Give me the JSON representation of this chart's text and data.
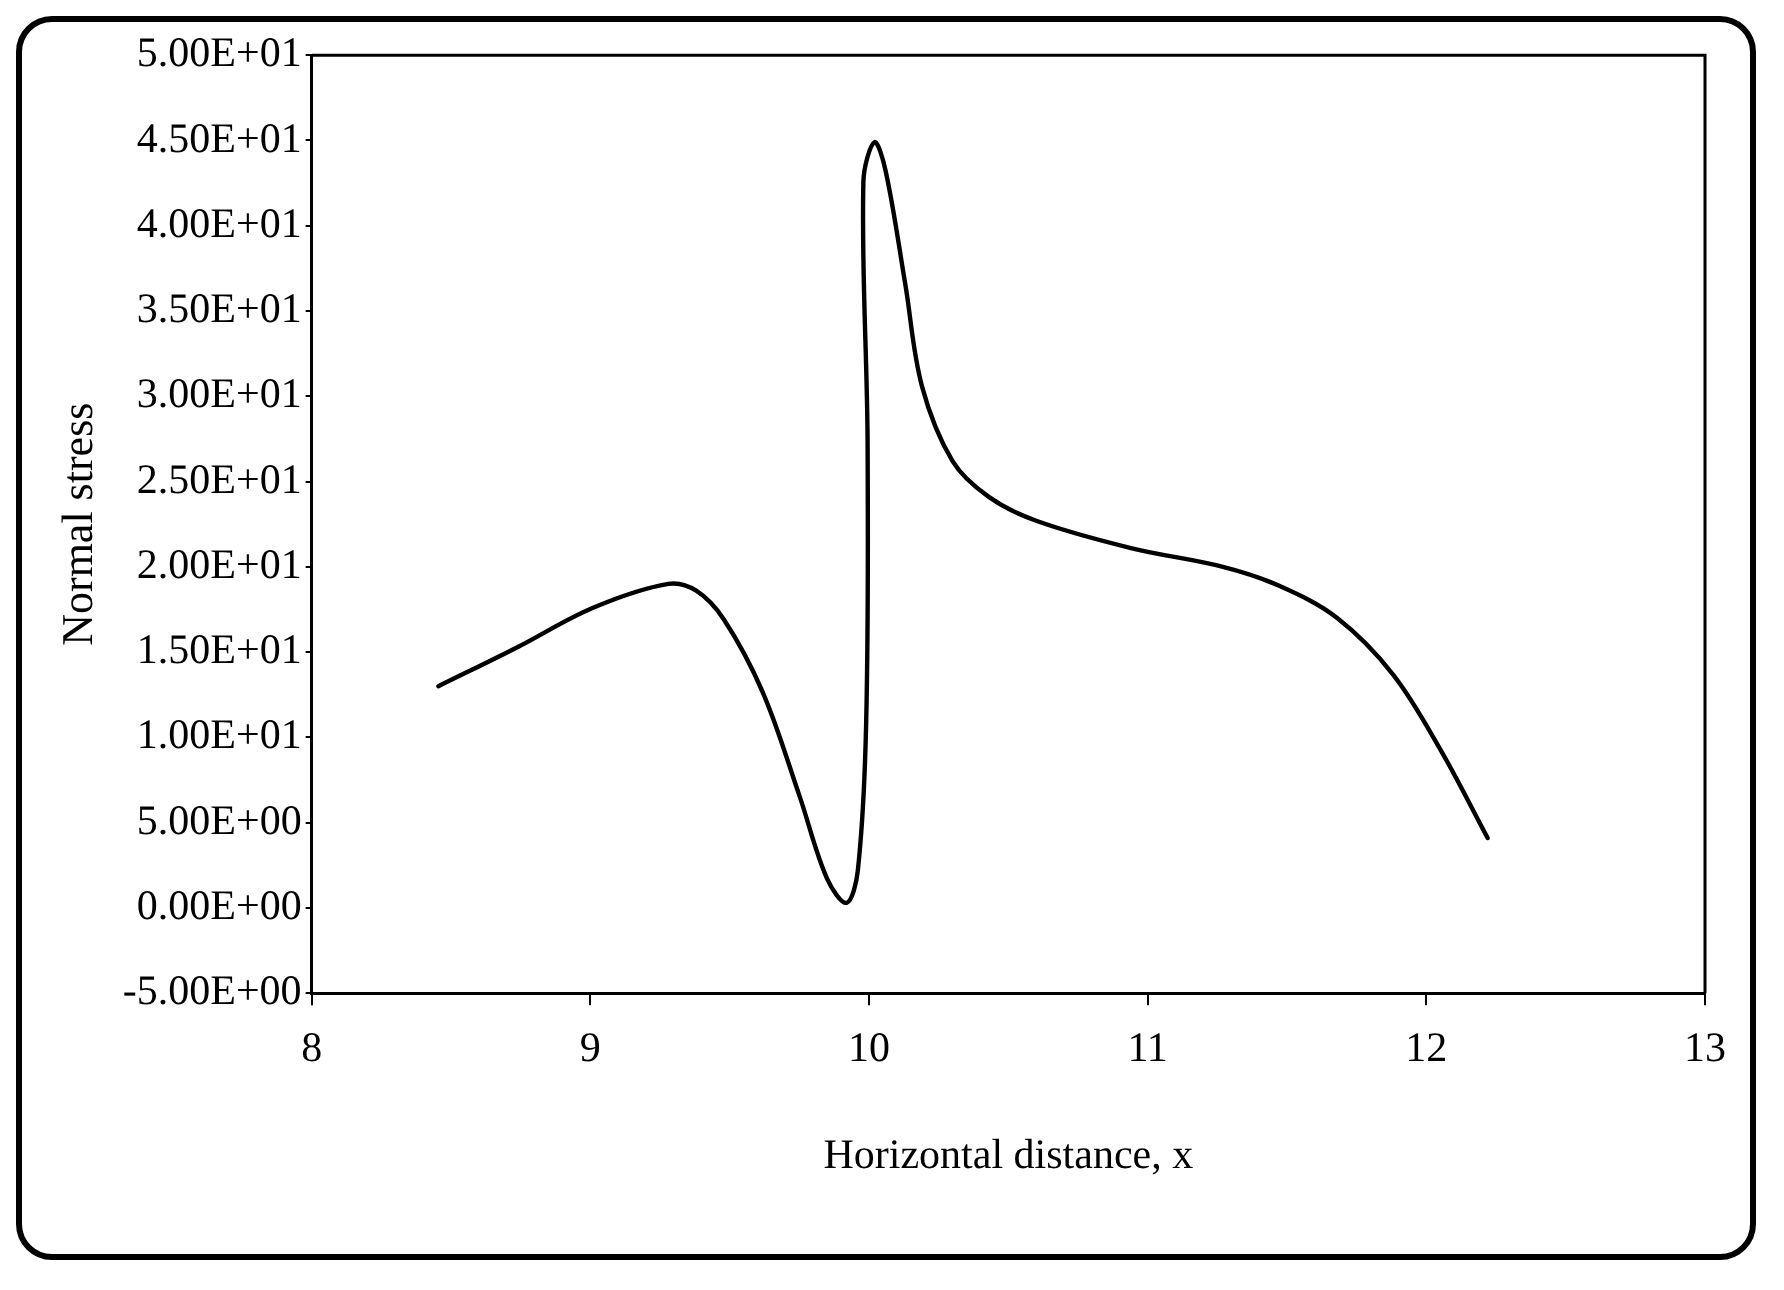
{
  "chart_data": {
    "type": "line",
    "xlabel": "Horizontal distance, x",
    "ylabel": "Normal stress",
    "x": [
      8.455,
      8.74,
      9.01,
      9.28,
      9.38,
      9.48,
      9.62,
      9.75,
      9.85,
      9.92,
      9.96,
      9.99,
      9.995,
      9.98,
      10.02,
      10.06,
      10.13,
      10.19,
      10.3,
      10.43,
      10.6,
      10.94,
      11.27,
      11.47,
      11.68,
      11.88,
      12.05,
      12.22
    ],
    "series": [
      {
        "color": "#000000",
        "values": [
          13.0,
          15.3,
          17.6,
          19.0,
          18.6,
          16.9,
          12.6,
          6.6,
          1.7,
          0.3,
          2.2,
          10.9,
          27.3,
          42.6,
          44.9,
          43.2,
          36.6,
          30.6,
          26.2,
          24.1,
          22.7,
          21.1,
          20.0,
          18.9,
          17.0,
          13.7,
          9.3,
          4.1
        ]
      }
    ],
    "xlim": [
      8,
      13
    ],
    "xticks": [
      8,
      9,
      10,
      11,
      12,
      13
    ],
    "ylim": [
      -5,
      50
    ],
    "yticks": [
      {
        "value": -5,
        "label": "-5.00E+00"
      },
      {
        "value": 0,
        "label": "0.00E+00"
      },
      {
        "value": 5,
        "label": "5.00E+00"
      },
      {
        "value": 10,
        "label": "1.00E+01"
      },
      {
        "value": 15,
        "label": "1.50E+01"
      },
      {
        "value": 20,
        "label": "2.00E+01"
      },
      {
        "value": 25,
        "label": "2.50E+01"
      },
      {
        "value": 30,
        "label": "3.00E+01"
      },
      {
        "value": 35,
        "label": "3.50E+01"
      },
      {
        "value": 40,
        "label": "4.00E+01"
      },
      {
        "value": 45,
        "label": "4.50E+01"
      },
      {
        "value": 50,
        "label": "5.00E+01"
      }
    ],
    "grid": false,
    "legend": false,
    "marker": "none",
    "line_style": "solid"
  }
}
